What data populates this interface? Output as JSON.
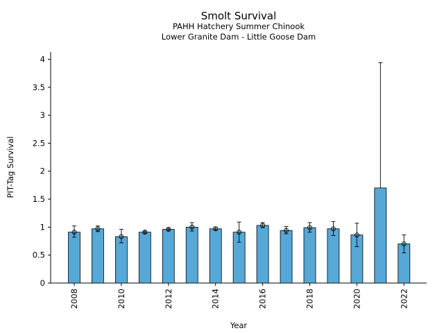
{
  "chart_data": {
    "type": "bar",
    "title": "Smolt Survival",
    "subtitle": [
      "PAHH Hatchery Summer Chinook",
      "Lower Granite Dam - Little Goose Dam"
    ],
    "xlabel": "Year",
    "ylabel": "PIT-Tag Survival",
    "ylim": [
      0,
      4.13
    ],
    "yticks": [
      0,
      0.5,
      1,
      1.5,
      2,
      2.5,
      3,
      3.5,
      4
    ],
    "ytick_labels": [
      "0",
      "0.5",
      "1",
      "1.5",
      "2",
      "2.5",
      "3",
      "3.5",
      "4"
    ],
    "xtick_labels": [
      "2008",
      "2010",
      "2012",
      "2014",
      "2016",
      "2018",
      "2020",
      "2022"
    ],
    "categories": [
      2008,
      2009,
      2010,
      2011,
      2012,
      2013,
      2014,
      2015,
      2016,
      2017,
      2018,
      2019,
      2020,
      2021,
      2022
    ],
    "values": [
      0.91,
      0.97,
      0.83,
      0.91,
      0.96,
      1.0,
      0.97,
      0.91,
      1.03,
      0.94,
      0.99,
      0.97,
      0.86,
      1.7,
      0.7
    ],
    "err_low": [
      0.82,
      0.92,
      0.72,
      0.89,
      0.94,
      0.93,
      0.95,
      0.73,
      0.99,
      0.88,
      0.91,
      0.85,
      0.65,
      null,
      0.54
    ],
    "err_high": [
      1.02,
      1.02,
      0.96,
      0.93,
      0.98,
      1.08,
      1.0,
      1.09,
      1.08,
      1.01,
      1.08,
      1.1,
      1.07,
      3.94,
      0.86
    ],
    "markers": [
      true,
      true,
      true,
      true,
      true,
      true,
      true,
      true,
      true,
      true,
      true,
      true,
      true,
      false,
      true
    ],
    "bar_color": "#56a8d6",
    "edge_color": "#000000",
    "grid": false
  }
}
